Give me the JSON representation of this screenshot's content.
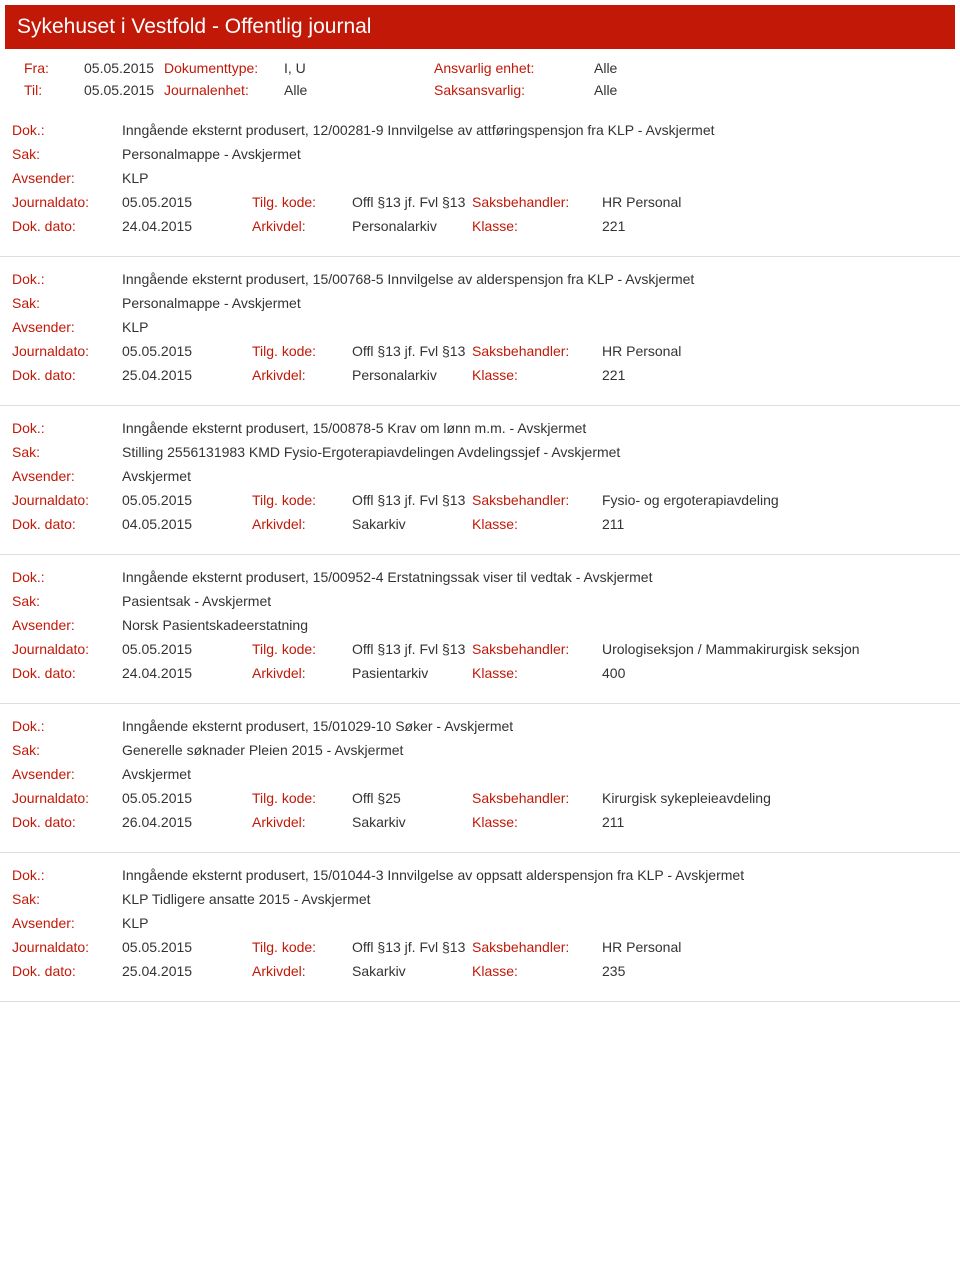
{
  "header": {
    "title": "Sykehuset i Vestfold - Offentlig journal"
  },
  "filters": {
    "fra_label": "Fra:",
    "fra_value": "05.05.2015",
    "til_label": "Til:",
    "til_value": "05.05.2015",
    "dokumenttype_label": "Dokumenttype:",
    "dokumenttype_value": "I, U",
    "journalenhet_label": "Journalenhet:",
    "journalenhet_value": "Alle",
    "ansvarlig_label": "Ansvarlig enhet:",
    "ansvarlig_value": "Alle",
    "saksansvarlig_label": "Saksansvarlig:",
    "saksansvarlig_value": "Alle"
  },
  "labels": {
    "dok": "Dok.:",
    "sak": "Sak:",
    "avsender": "Avsender:",
    "journaldato": "Journaldato:",
    "dokdato": "Dok. dato:",
    "tilgkode": "Tilg. kode:",
    "arkivdel": "Arkivdel:",
    "saksbehandler": "Saksbehandler:",
    "klasse": "Klasse:"
  },
  "entries": [
    {
      "dok": "Inngående eksternt produsert, 12/00281-9 Innvilgelse av attføringspensjon fra KLP - Avskjermet",
      "sak": "Personalmappe - Avskjermet",
      "avsender": "KLP",
      "journaldato": "05.05.2015",
      "dokdato": "24.04.2015",
      "tilgkode": "Offl §13 jf. Fvl §13",
      "arkivdel": "Personalarkiv",
      "saksbehandler": "HR Personal",
      "klasse": "221"
    },
    {
      "dok": "Inngående eksternt produsert, 15/00768-5 Innvilgelse av alderspensjon fra KLP - Avskjermet",
      "sak": "Personalmappe - Avskjermet",
      "avsender": "KLP",
      "journaldato": "05.05.2015",
      "dokdato": "25.04.2015",
      "tilgkode": "Offl §13 jf. Fvl §13",
      "arkivdel": "Personalarkiv",
      "saksbehandler": "HR Personal",
      "klasse": "221"
    },
    {
      "dok": "Inngående eksternt produsert, 15/00878-5 Krav om lønn m.m. - Avskjermet",
      "sak": "Stilling 2556131983 KMD Fysio-Ergoterapiavdelingen Avdelingssjef - Avskjermet",
      "avsender": "Avskjermet",
      "journaldato": "05.05.2015",
      "dokdato": "04.05.2015",
      "tilgkode": "Offl §13 jf. Fvl §13",
      "arkivdel": "Sakarkiv",
      "saksbehandler": "Fysio- og ergoterapiavdeling",
      "klasse": "211"
    },
    {
      "dok": "Inngående eksternt produsert, 15/00952-4 Erstatningssak viser til vedtak - Avskjermet",
      "sak": "Pasientsak - Avskjermet",
      "avsender": "Norsk Pasientskadeerstatning",
      "journaldato": "05.05.2015",
      "dokdato": "24.04.2015",
      "tilgkode": "Offl §13 jf. Fvl §13",
      "arkivdel": "Pasientarkiv",
      "saksbehandler": "Urologiseksjon / Mammakirurgisk seksjon",
      "klasse": "400"
    },
    {
      "dok": "Inngående eksternt produsert, 15/01029-10 Søker - Avskjermet",
      "sak": "Generelle søknader Pleien 2015 - Avskjermet",
      "avsender": "Avskjermet",
      "journaldato": "05.05.2015",
      "dokdato": "26.04.2015",
      "tilgkode": "Offl §25",
      "arkivdel": "Sakarkiv",
      "saksbehandler": "Kirurgisk sykepleieavdeling",
      "klasse": "211"
    },
    {
      "dok": "Inngående eksternt produsert, 15/01044-3 Innvilgelse av oppsatt alderspensjon fra KLP - Avskjermet",
      "sak": "KLP Tidligere ansatte 2015 - Avskjermet",
      "avsender": "KLP",
      "journaldato": "05.05.2015",
      "dokdato": "25.04.2015",
      "tilgkode": "Offl §13 jf. Fvl §13",
      "arkivdel": "Sakarkiv",
      "saksbehandler": "HR Personal",
      "klasse": "235"
    }
  ],
  "style": {
    "accent_color": "#c21807",
    "text_color": "#333333",
    "border_color": "#dddddd",
    "background": "#ffffff",
    "title_font_size": 21,
    "body_font_size": 14
  }
}
